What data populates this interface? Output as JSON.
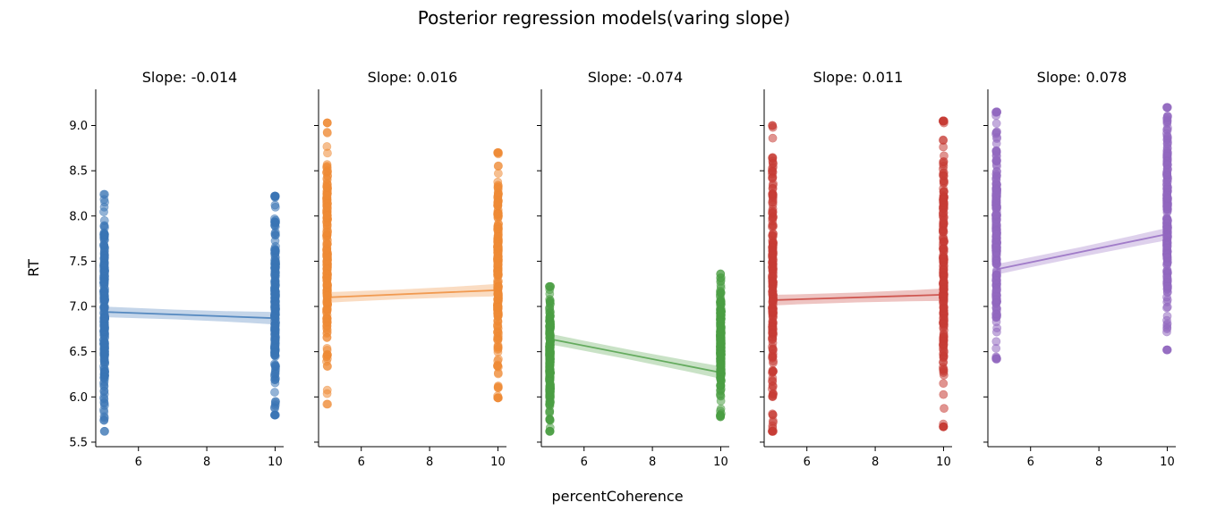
{
  "title": "Posterior regression models(varing slope)",
  "chart_data": {
    "type": "scatter",
    "xlabel": "percentCoherence",
    "ylabel": "RT",
    "ylim": [
      5.45,
      9.4
    ],
    "xlim": [
      4.75,
      10.25
    ],
    "x_ticks": [
      6,
      8,
      10
    ],
    "y_ticks": [
      "5.5",
      "6.0",
      "6.5",
      "7.0",
      "7.5",
      "8.0",
      "8.5",
      "9.0"
    ],
    "y_tick_values": [
      5.5,
      6.0,
      6.5,
      7.0,
      7.5,
      8.0,
      8.5,
      9.0
    ],
    "panels": [
      {
        "title": "Slope: -0.014",
        "color": "#3a75b5",
        "points": [
          {
            "x": 5,
            "y_min": 5.62,
            "y_max": 8.24
          },
          {
            "x": 10,
            "y_min": 5.8,
            "y_max": 8.22
          }
        ],
        "line": {
          "x": [
            5,
            10
          ],
          "y": [
            6.94,
            6.87
          ]
        }
      },
      {
        "title": "Slope: 0.016",
        "color": "#ef8a34",
        "points": [
          {
            "x": 5,
            "y_min": 5.92,
            "y_max": 9.03
          },
          {
            "x": 10,
            "y_min": 5.99,
            "y_max": 8.7
          }
        ],
        "line": {
          "x": [
            5,
            10
          ],
          "y": [
            7.1,
            7.18
          ]
        }
      },
      {
        "title": "Slope: -0.074",
        "color": "#4b9e43",
        "points": [
          {
            "x": 5,
            "y_min": 5.62,
            "y_max": 7.22
          },
          {
            "x": 10,
            "y_min": 5.78,
            "y_max": 7.36
          }
        ],
        "line": {
          "x": [
            5,
            10
          ],
          "y": [
            6.64,
            6.27
          ]
        }
      },
      {
        "title": "Slope: 0.011",
        "color": "#c73c35",
        "points": [
          {
            "x": 5,
            "y_min": 5.62,
            "y_max": 9.0
          },
          {
            "x": 10,
            "y_min": 5.67,
            "y_max": 9.05
          }
        ],
        "line": {
          "x": [
            5,
            10
          ],
          "y": [
            7.07,
            7.13
          ]
        }
      },
      {
        "title": "Slope: 0.078",
        "color": "#9167c0",
        "points": [
          {
            "x": 5,
            "y_min": 6.42,
            "y_max": 9.15
          },
          {
            "x": 10,
            "y_min": 6.52,
            "y_max": 9.2
          }
        ],
        "line": {
          "x": [
            5,
            10
          ],
          "y": [
            7.41,
            7.8
          ]
        }
      }
    ]
  }
}
